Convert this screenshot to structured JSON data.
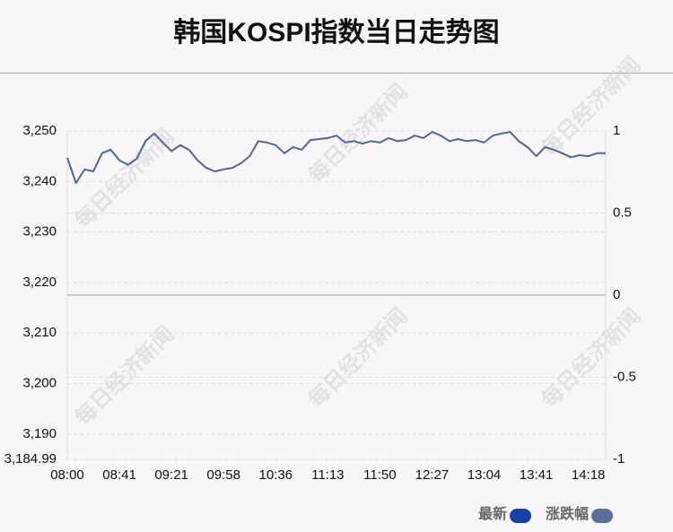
{
  "chart_data": {
    "type": "line",
    "title": "韩国KOSPI指数当日走势图",
    "watermark": "每日经济新闻",
    "categories": [
      "08:00",
      null,
      null,
      null,
      null,
      null,
      "08:41",
      null,
      null,
      null,
      null,
      null,
      "09:21",
      null,
      null,
      null,
      null,
      null,
      "09:58",
      null,
      null,
      null,
      null,
      null,
      "10:36",
      null,
      null,
      null,
      null,
      null,
      "11:13",
      null,
      null,
      null,
      null,
      null,
      "11:50",
      null,
      null,
      null,
      null,
      null,
      "12:27",
      null,
      null,
      null,
      null,
      null,
      "13:04",
      null,
      null,
      null,
      null,
      null,
      "13:41",
      null,
      null,
      null,
      null,
      null,
      "14:18",
      null,
      null
    ],
    "series": [
      {
        "name": "最新",
        "color": "#1440a8",
        "values": [
          3244.7,
          3239.7,
          3242.4,
          3242.0,
          3245.6,
          3246.3,
          3244.2,
          3243.3,
          3244.5,
          3248.0,
          3249.5,
          3247.7,
          3246.0,
          3247.2,
          3246.3,
          3244.2,
          3242.7,
          3242.0,
          3242.4,
          3242.7,
          3243.6,
          3245.0,
          3248.0,
          3247.7,
          3247.2,
          3245.6,
          3246.8,
          3246.3,
          3248.2,
          3248.4,
          3248.6,
          3249.1,
          3247.7,
          3248.0,
          3247.5,
          3248.0,
          3247.7,
          3248.6,
          3248.0,
          3248.2,
          3249.1,
          3248.6,
          3249.8,
          3249.1,
          3248.0,
          3248.4,
          3248.0,
          3248.2,
          3247.7,
          3249.1,
          3249.5,
          3249.8,
          3248.0,
          3246.8,
          3245.0,
          3246.8,
          3246.3,
          3245.6,
          3244.8,
          3245.2,
          3245.0,
          3245.6,
          3245.6
        ]
      },
      {
        "name": "涨跌幅",
        "color": "#5b6f9b",
        "axis": "y2"
      }
    ],
    "line_color": "#4f6797",
    "ylim": [
      3184.99,
      3250
    ],
    "yticks": [
      {
        "value": 3184.99,
        "label": "3,184.99"
      },
      {
        "value": 3190,
        "label": "3,190"
      },
      {
        "value": 3200,
        "label": "3,200"
      },
      {
        "value": 3210,
        "label": "3,210"
      },
      {
        "value": 3220,
        "label": "3,220"
      },
      {
        "value": 3230,
        "label": "3,230"
      },
      {
        "value": 3240,
        "label": "3,240"
      },
      {
        "value": 3250,
        "label": "3,250"
      }
    ],
    "y2lim": [
      -1,
      1
    ],
    "y2ticks": [
      -1,
      -0.5,
      0,
      0.5,
      1
    ],
    "grid": true
  }
}
